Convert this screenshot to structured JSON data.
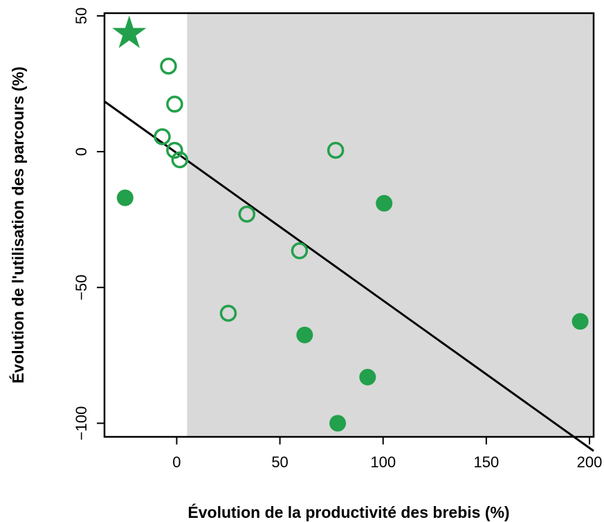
{
  "chart_data": {
    "type": "scatter",
    "title": "",
    "xlabel": "Évolution de la productivité des brebis (%)",
    "ylabel": "Évolution de l'utilisation des parcours (%)",
    "xlim": [
      -35,
      202
    ],
    "ylim": [
      -105,
      51
    ],
    "xticks": [
      0,
      50,
      100,
      150,
      200
    ],
    "yticks": [
      -100,
      -50,
      0,
      50
    ],
    "xtick_labels": [
      "0",
      "50",
      "100",
      "150",
      "200"
    ],
    "ytick_labels": [
      "−100",
      "−50",
      "0",
      "50"
    ],
    "grid": false,
    "legend": "none",
    "shaded_region": {
      "x_from": 5,
      "x_to": 202,
      "color": "#d9d9d9"
    },
    "regression_line": {
      "slope": -0.543,
      "intercept": -0.5,
      "color": "#000000"
    },
    "marker_color": "#22a04b",
    "series": [
      {
        "marker": "open-circle",
        "points": [
          {
            "x": -4,
            "y": 31.5
          },
          {
            "x": -1,
            "y": 17.5
          },
          {
            "x": -7,
            "y": 5.5
          },
          {
            "x": -1,
            "y": 0.5
          },
          {
            "x": 1.5,
            "y": -3
          },
          {
            "x": 77,
            "y": 0.5
          },
          {
            "x": 34,
            "y": -23
          },
          {
            "x": 59.5,
            "y": -36.5
          },
          {
            "x": 25,
            "y": -59.5
          }
        ]
      },
      {
        "marker": "filled-circle",
        "points": [
          {
            "x": -25,
            "y": -17
          },
          {
            "x": 100.5,
            "y": -19
          },
          {
            "x": 62,
            "y": -67.5
          },
          {
            "x": 92.5,
            "y": -83
          },
          {
            "x": 78,
            "y": -100
          },
          {
            "x": 195.5,
            "y": -62.5
          }
        ]
      },
      {
        "marker": "star",
        "points": [
          {
            "x": -23,
            "y": 43.5
          }
        ]
      }
    ]
  }
}
